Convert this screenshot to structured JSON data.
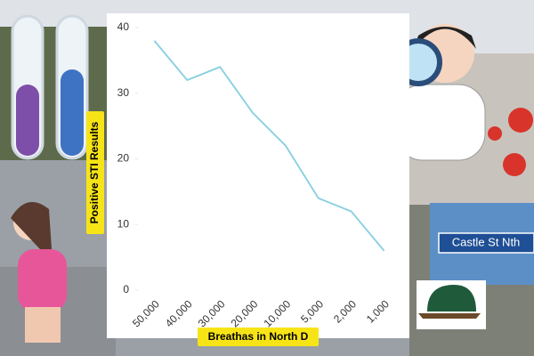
{
  "chart_data": {
    "type": "line",
    "categories": [
      "50,000",
      "40,000",
      "30,000",
      "20,000",
      "10,000",
      "5,000",
      "2,000",
      "1,000"
    ],
    "series": [
      {
        "name": "Positive STI Results",
        "color": "#86cfe0",
        "values": [
          38,
          32,
          34,
          27,
          22,
          14,
          12,
          6
        ]
      }
    ],
    "ylim": [
      0,
      40
    ],
    "yticks": [
      0,
      10,
      20,
      30,
      40
    ],
    "grid": false,
    "x_label": "Breathas in North D",
    "y_label": "Positive STI Results",
    "annotations": [
      "Castle St Nth"
    ]
  }
}
